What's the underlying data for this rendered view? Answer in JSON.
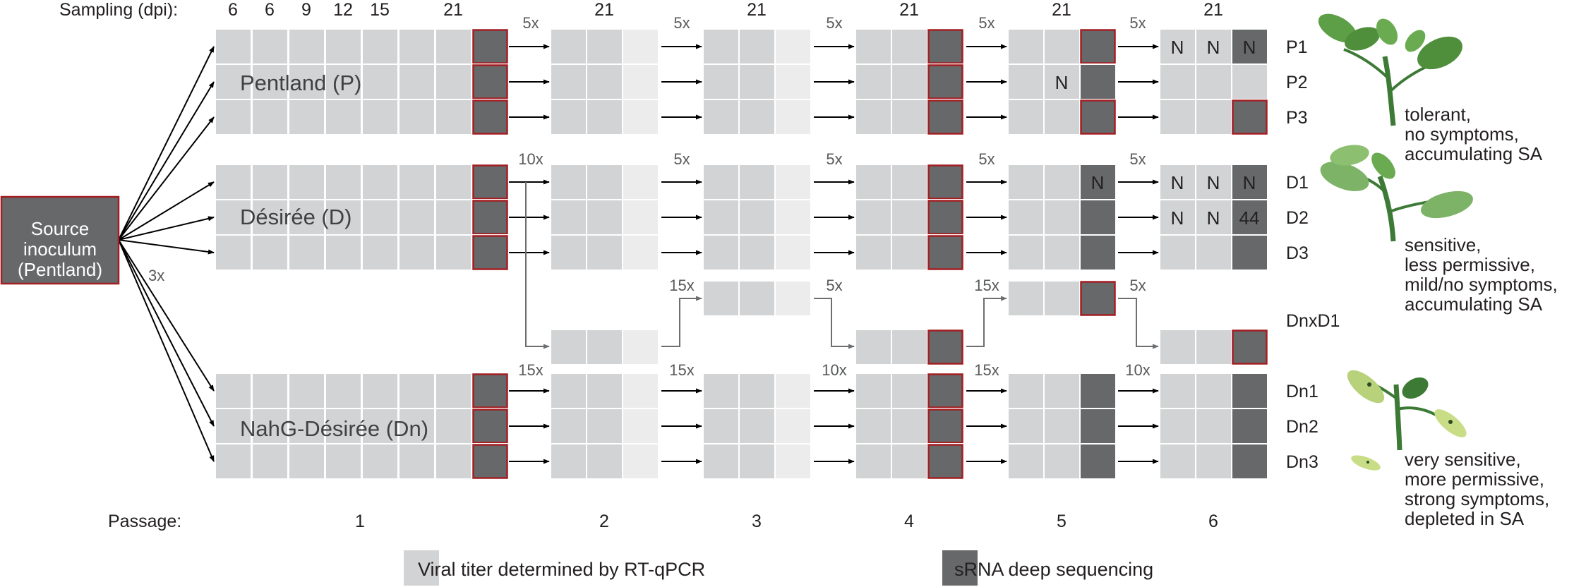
{
  "labels": {
    "sampling": "Sampling (dpi):",
    "passage": "Passage:",
    "source": [
      "Source",
      "inoculum",
      "(Pentland)"
    ],
    "source_multiplier": "3x"
  },
  "dpi_labels": {
    "passage1": [
      "6",
      "6",
      "9",
      "12",
      "15",
      "21"
    ],
    "later_passages": "21"
  },
  "passages": [
    "1",
    "2",
    "3",
    "4",
    "5",
    "6"
  ],
  "cultivars": [
    {
      "name": "Pentland (P)",
      "lines": [
        "P1",
        "P2",
        "P3"
      ],
      "traits": [
        "tolerant,",
        "no symptoms,",
        "accumulating SA"
      ]
    },
    {
      "name": "Désirée (D)",
      "lines": [
        "D1",
        "D2",
        "D3"
      ],
      "traits": [
        "sensitive,",
        "less permissive,",
        "mild/no symptoms,",
        "accumulating SA"
      ]
    },
    {
      "name": "NahG-Désirée (Dn)",
      "lines": [
        "Dn1",
        "Dn2",
        "Dn3"
      ],
      "traits": [
        "very sensitive,",
        "more permissive,",
        "strong symptoms,",
        "depleted in SA"
      ]
    }
  ],
  "dnxd1_label": "DnxD1",
  "multipliers": {
    "pentland": [
      "5x",
      "5x",
      "5x",
      "5x",
      "5x"
    ],
    "desiree": [
      "10x",
      "5x",
      "5x",
      "5x",
      "5x"
    ],
    "dnxd1": [
      "15x",
      "5x",
      "15x",
      "5x"
    ],
    "nahg": [
      "15x",
      "15x",
      "10x",
      "15x",
      "10x"
    ]
  },
  "cell_marks": {
    "p5_row1": "N",
    "p6_p1": [
      "N",
      "N",
      "N"
    ],
    "d5_row0": "N",
    "p6_d1": [
      "N",
      "N",
      "N"
    ],
    "p6_d2": [
      "N",
      "N",
      "44"
    ]
  },
  "legend": {
    "rtqpcr": "Viral titer determined by RT-qPCR",
    "srna": "sRNA deep sequencing"
  },
  "colors": {
    "light_cell": "#d2d3d4",
    "faint_cell": "#ececec",
    "dark_cell": "#67686a",
    "red_outline": "#a31e22",
    "arrow": "#000000",
    "grey_arrow": "#6d6e71",
    "text": "#414042",
    "plant_green": "#3c8a3e"
  }
}
